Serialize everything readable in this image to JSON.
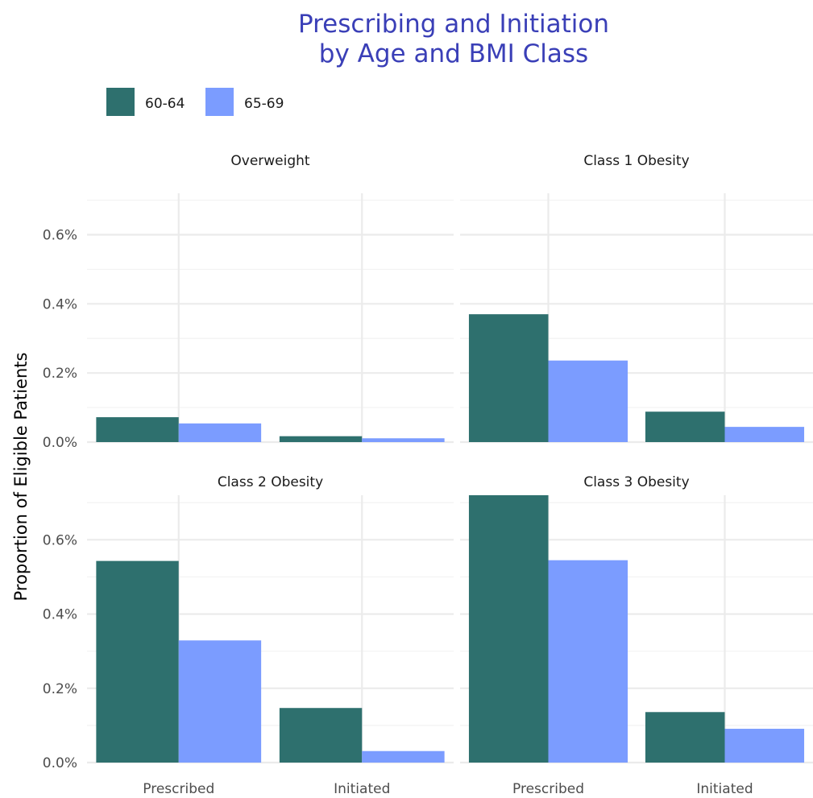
{
  "chart_data": {
    "type": "bar",
    "title": [
      "Prescribing and Initiation",
      "by Age and BMI Class"
    ],
    "ylabel": "Proportion of Eligible Patients",
    "categories": [
      "Prescribed",
      "Initiated"
    ],
    "ylim": [
      0,
      0.72
    ],
    "yticks": [
      0.0,
      0.2,
      0.4,
      0.6
    ],
    "ytick_labels": [
      "0.0%",
      "0.2%",
      "0.4%",
      "0.6%"
    ],
    "legend": {
      "placement": "top-left"
    },
    "grid": true,
    "series_colors": {
      "60-64": "#2e706e",
      "65-69": "#7b9cff"
    },
    "panels": [
      {
        "title": "Overweight",
        "series": [
          {
            "name": "60-64",
            "values": [
              0.072,
              0.017
            ]
          },
          {
            "name": "65-69",
            "values": [
              0.054,
              0.011
            ]
          }
        ]
      },
      {
        "title": "Class 1 Obesity",
        "series": [
          {
            "name": "60-64",
            "values": [
              0.37,
              0.088
            ]
          },
          {
            "name": "65-69",
            "values": [
              0.236,
              0.044
            ]
          }
        ]
      },
      {
        "title": "Class 2 Obesity",
        "series": [
          {
            "name": "60-64",
            "values": [
              0.543,
              0.147
            ]
          },
          {
            "name": "65-69",
            "values": [
              0.329,
              0.031
            ]
          }
        ]
      },
      {
        "title": "Class 3 Obesity",
        "series": [
          {
            "name": "60-64",
            "values": [
              0.72,
              0.136
            ]
          },
          {
            "name": "65-69",
            "values": [
              0.545,
              0.091
            ]
          }
        ]
      }
    ]
  }
}
